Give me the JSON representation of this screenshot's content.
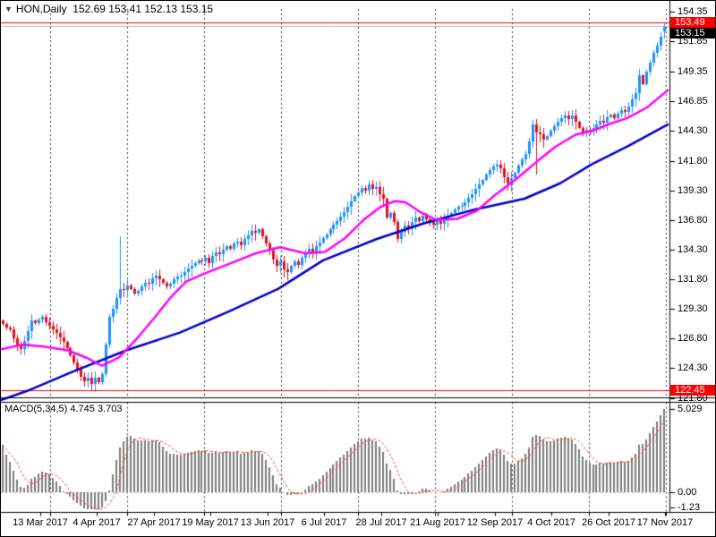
{
  "window": {
    "title_symbol": "HON,Daily",
    "title_ohlc": "152.69 153.41 152.13 153.15",
    "title_marker": "▼"
  },
  "colors": {
    "background": "#FFFFFF",
    "border": "#000000",
    "grid": "#3a3a3a",
    "candle_up": "#1E90FF",
    "candle_down": "#E0101E",
    "ma_fast": "#FF00FF",
    "ma_slow": "#0000C8",
    "macd_bar": "#7d7d7d",
    "macd_signal": "#FF4444",
    "ask_line": "#FF0000",
    "bid_line": "#BBBBBB",
    "object_line": "#FF0000",
    "marker_ask_bg": "#FF0000",
    "marker_bid_bg": "#000000",
    "text": "#000000"
  },
  "price_axis": {
    "ticks": [
      154.35,
      151.85,
      149.35,
      146.85,
      144.3,
      141.8,
      139.3,
      136.8,
      134.3,
      131.8,
      129.3,
      126.8,
      124.3,
      121.8
    ],
    "markers": {
      "ask": "153.49",
      "bid": "153.15",
      "object": "122.45"
    }
  },
  "date_axis": {
    "labels": [
      "13 Mar 2017",
      "4 Apr 2017",
      "27 Apr 2017",
      "19 May 2017",
      "13 Jun 2017",
      "6 Jul 2017",
      "28 Jul 2017",
      "21 Aug 2017",
      "12 Sep 2017",
      "4 Oct 2017",
      "26 Oct 2017",
      "17 Nov 2017"
    ]
  },
  "macd_panel": {
    "label": "MACD(5,34,5)",
    "values": "4.745 3.703",
    "axis_max": "5.029",
    "axis_zero": "0.00",
    "axis_min": "-1.23"
  },
  "chart_data": {
    "type": "candlestick",
    "symbol": "HON",
    "timeframe": "Daily",
    "last_candle": {
      "open": 152.69,
      "high": 153.41,
      "low": 152.13,
      "close": 153.15
    },
    "hlines": {
      "ask": 153.49,
      "bid": 153.15,
      "object": 122.45
    },
    "price_range_labels": [
      154.35,
      121.8
    ],
    "closes": [
      128.0,
      127.7,
      127.6,
      126.8,
      126.2,
      125.9,
      126.6,
      127.4,
      128.3,
      128.1,
      128.4,
      128.6,
      128.2,
      127.9,
      127.6,
      127.3,
      126.9,
      126.5,
      126.0,
      125.4,
      124.8,
      124.2,
      123.6,
      123.2,
      123.5,
      123.0,
      123.5,
      123.1,
      123.8,
      126.3,
      128.6,
      129.3,
      130.2,
      131.0,
      130.9,
      131.3,
      131.0,
      130.6,
      130.8,
      131.2,
      131.5,
      131.4,
      131.9,
      132.1,
      131.8,
      131.5,
      131.2,
      131.4,
      131.8,
      132.0,
      132.1,
      132.4,
      132.7,
      132.9,
      133.2,
      133.4,
      133.3,
      133.6,
      133.2,
      133.8,
      134.1,
      133.9,
      134.3,
      134.6,
      134.4,
      134.8,
      135.0,
      134.7,
      135.2,
      135.5,
      135.9,
      135.7,
      136.0,
      135.4,
      134.8,
      134.2,
      133.5,
      132.9,
      133.3,
      132.6,
      132.4,
      132.9,
      133.3,
      133.0,
      133.6,
      134.0,
      134.4,
      134.1,
      134.6,
      134.9,
      135.3,
      135.6,
      136.0,
      136.4,
      136.7,
      137.1,
      137.5,
      137.9,
      138.4,
      138.8,
      139.1,
      139.5,
      139.3,
      139.8,
      139.4,
      139.6,
      139.0,
      138.6,
      137.0,
      137.4,
      136.6,
      135.2,
      135.8,
      136.3,
      136.1,
      136.6,
      137.0,
      136.7,
      137.2,
      136.9,
      136.6,
      136.4,
      136.7,
      136.5,
      136.9,
      137.2,
      137.4,
      137.7,
      137.9,
      138.0,
      138.3,
      138.7,
      139.0,
      139.4,
      139.8,
      140.2,
      140.6,
      141.0,
      141.3,
      141.5,
      141.2,
      140.4,
      139.9,
      140.3,
      140.8,
      141.4,
      141.9,
      142.4,
      143.4,
      144.9,
      144.2,
      144.0,
      143.6,
      143.9,
      144.3,
      144.7,
      145.1,
      145.4,
      145.6,
      145.3,
      145.6,
      145.1,
      144.6,
      144.1,
      144.4,
      144.3,
      144.6,
      144.9,
      145.2,
      145.0,
      145.5,
      145.7,
      145.4,
      145.8,
      146.1,
      145.9,
      146.4,
      147.0,
      147.5,
      149.0,
      148.3,
      149.3,
      150.1,
      150.9,
      151.5,
      152.3,
      153.15
    ],
    "special_candles": {
      "33": {
        "high": 135.4
      },
      "150": {
        "low": 140.6
      },
      "186": {
        "open": 152.69,
        "high": 153.41,
        "low": 152.13,
        "close": 153.15
      }
    },
    "ma_fast_points": [
      [
        0,
        125.9
      ],
      [
        25,
        126.3
      ],
      [
        50,
        126.1
      ],
      [
        75,
        125.8
      ],
      [
        95,
        125.2
      ],
      [
        113,
        124.5
      ],
      [
        132,
        125.2
      ],
      [
        152,
        126.8
      ],
      [
        172,
        128.6
      ],
      [
        190,
        130.3
      ],
      [
        207,
        131.6
      ],
      [
        228,
        132.3
      ],
      [
        255,
        133.1
      ],
      [
        285,
        134.0
      ],
      [
        312,
        134.5
      ],
      [
        340,
        134.0
      ],
      [
        362,
        134.1
      ],
      [
        385,
        135.3
      ],
      [
        405,
        136.8
      ],
      [
        424,
        137.9
      ],
      [
        440,
        138.4
      ],
      [
        452,
        138.3
      ],
      [
        468,
        137.5
      ],
      [
        487,
        136.8
      ],
      [
        510,
        136.9
      ],
      [
        532,
        137.6
      ],
      [
        552,
        138.9
      ],
      [
        575,
        140.2
      ],
      [
        600,
        141.8
      ],
      [
        620,
        143.0
      ],
      [
        642,
        144.0
      ],
      [
        660,
        144.3
      ],
      [
        680,
        144.9
      ],
      [
        700,
        145.4
      ],
      [
        722,
        146.3
      ],
      [
        746,
        147.8
      ]
    ],
    "ma_slow_points": [
      [
        0,
        121.6
      ],
      [
        30,
        122.4
      ],
      [
        80,
        124.0
      ],
      [
        140,
        125.8
      ],
      [
        200,
        127.3
      ],
      [
        255,
        129.1
      ],
      [
        310,
        131.0
      ],
      [
        360,
        133.4
      ],
      [
        420,
        135.2
      ],
      [
        472,
        136.5
      ],
      [
        530,
        137.7
      ],
      [
        585,
        138.6
      ],
      [
        625,
        139.9
      ],
      [
        660,
        141.5
      ],
      [
        700,
        143.0
      ],
      [
        746,
        144.9
      ]
    ],
    "macd": {
      "fast": 5,
      "slow": 34,
      "signal_period": 5,
      "current": 4.745,
      "current_signal": 3.703,
      "axis_max": 5.029,
      "axis_min": -1.23
    }
  }
}
